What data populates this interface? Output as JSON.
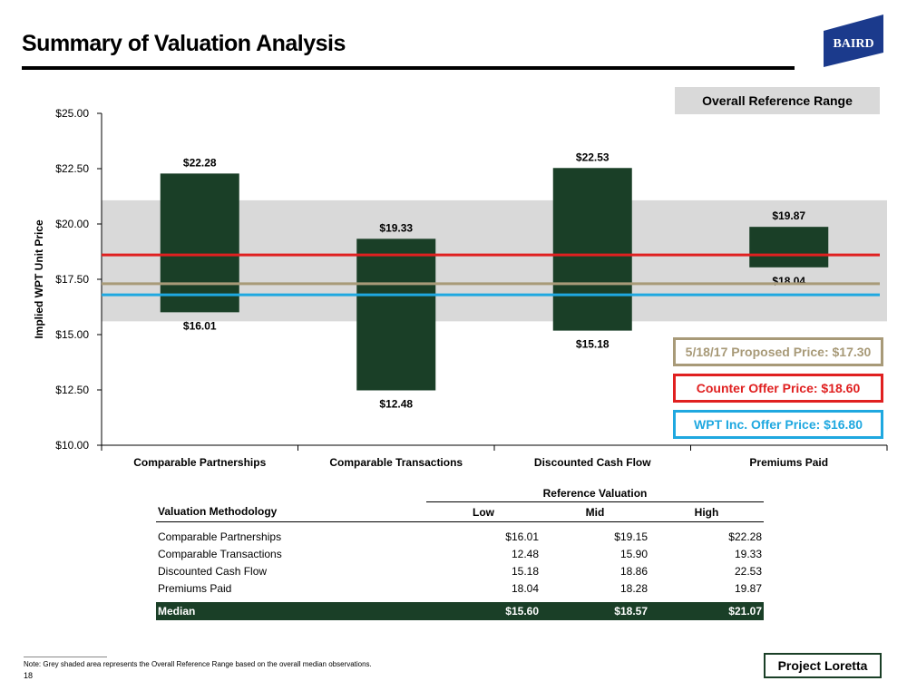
{
  "header": {
    "title": "Summary of Valuation Analysis",
    "logo_text": "BAIRD"
  },
  "reference_range_label": "Overall Reference Range",
  "chart_data": {
    "type": "bar",
    "subtype": "floating-range",
    "categories": [
      "Comparable Partnerships",
      "Comparable Transactions",
      "Discounted Cash Flow",
      "Premiums Paid"
    ],
    "low": [
      16.01,
      12.48,
      15.18,
      18.04
    ],
    "high": [
      22.28,
      19.33,
      22.53,
      19.87
    ],
    "low_labels": [
      "$16.01",
      "$12.48",
      "$15.18",
      "$18.04"
    ],
    "high_labels": [
      "$22.28",
      "$19.33",
      "$22.53",
      "$19.87"
    ],
    "ylabel": "Implied WPT Unit Price",
    "xlabel": "",
    "ylim": [
      10,
      25
    ],
    "yticks": [
      10,
      12.5,
      15,
      17.5,
      20,
      22.5,
      25
    ],
    "ytick_labels": [
      "$10.00",
      "$12.50",
      "$15.00",
      "$17.50",
      "$20.00",
      "$22.50",
      "$25.00"
    ],
    "reference_range": [
      15.6,
      21.07
    ],
    "reference_lines": [
      {
        "name": "5/18/17 Proposed Price",
        "value": 17.3,
        "color": "#a89a78"
      },
      {
        "name": "Counter Offer Price",
        "value": 18.6,
        "color": "#e02020"
      },
      {
        "name": "WPT Inc. Offer Price",
        "value": 16.8,
        "color": "#1fa8e0"
      }
    ],
    "bar_color": "#1a3f27",
    "range_color": "#d9d9d9"
  },
  "legend": {
    "proposed": "5/18/17 Proposed Price: $17.30",
    "counter": "Counter Offer Price: $18.60",
    "wpt": "WPT Inc. Offer Price: $16.80"
  },
  "table": {
    "group_header": "Reference Valuation",
    "columns": [
      "Valuation Methodology",
      "Low",
      "Mid",
      "High"
    ],
    "rows": [
      {
        "method": "Comparable Partnerships",
        "low": "$16.01",
        "mid": "$19.15",
        "high": "$22.28"
      },
      {
        "method": "Comparable Transactions",
        "low": "12.48",
        "mid": "15.90",
        "high": "19.33"
      },
      {
        "method": "Discounted Cash Flow",
        "low": "15.18",
        "mid": "18.86",
        "high": "22.53"
      },
      {
        "method": "Premiums Paid",
        "low": "18.04",
        "mid": "18.28",
        "high": "19.87"
      }
    ],
    "median": {
      "label": "Median",
      "low": "$15.60",
      "mid": "$18.57",
      "high": "$21.07"
    }
  },
  "footer": {
    "note": "Note: Grey shaded area represents the Overall Reference Range based on the overall median observations.",
    "page_number": "18",
    "project": "Project Loretta"
  }
}
